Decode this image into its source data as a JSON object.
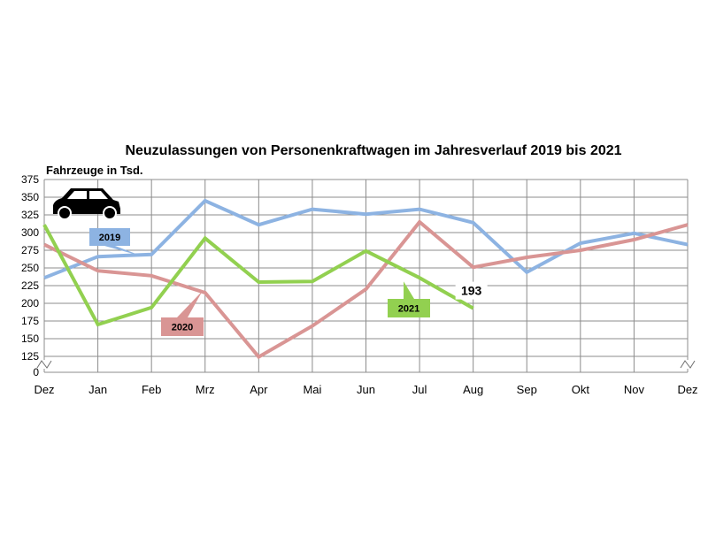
{
  "chart_data": {
    "type": "line",
    "title": "Neuzulassungen von Personenkraftwagen im Jahresverlauf 2019 bis 2021",
    "ylabel": "Fahrzeuge in Tsd.",
    "xlabel": "",
    "categories": [
      "Dez",
      "Jan",
      "Feb",
      "Mrz",
      "Apr",
      "Mai",
      "Jun",
      "Jul",
      "Aug",
      "Sep",
      "Okt",
      "Nov",
      "Dez"
    ],
    "y_ticks": [
      0,
      125,
      150,
      175,
      200,
      225,
      250,
      275,
      300,
      325,
      350,
      375
    ],
    "y_axis_break": "0-125",
    "ylim": [
      0,
      375
    ],
    "grid": true,
    "legend": "inline labels",
    "series": [
      {
        "name": "2019",
        "color": "#8db3e2",
        "values": [
          236,
          266,
          269,
          345,
          311,
          333,
          326,
          333,
          314,
          244,
          285,
          299,
          283
        ]
      },
      {
        "name": "2020",
        "color": "#d99594",
        "values": [
          283,
          246,
          239,
          215,
          121,
          168,
          220,
          315,
          251,
          265,
          275,
          290,
          311
        ]
      },
      {
        "name": "2021",
        "color": "#92d050",
        "values": [
          311,
          170,
          194,
          292,
          230,
          231,
          274,
          236,
          193,
          null,
          null,
          null,
          null
        ]
      }
    ],
    "annotations": [
      {
        "text": "193",
        "series": "2021",
        "category_index": 8
      }
    ],
    "icon": "car-icon"
  }
}
